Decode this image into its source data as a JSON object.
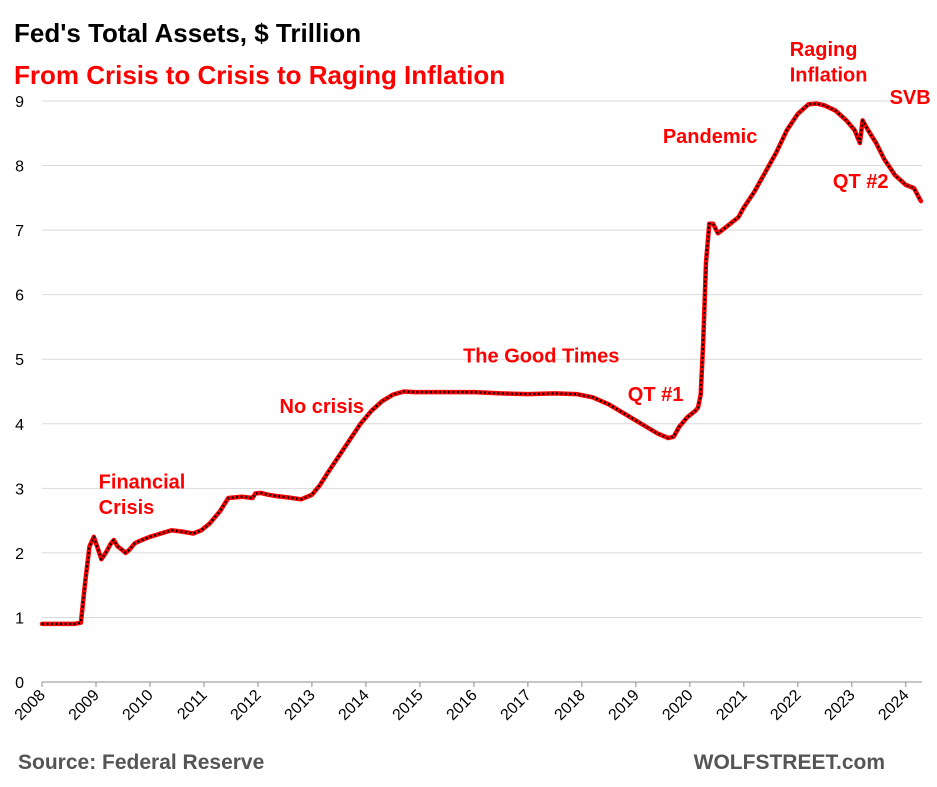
{
  "title": "Fed's Total Assets, $ Trillion",
  "subtitle": "From Crisis to Crisis to Raging Inflation",
  "source": "Source: Federal Reserve",
  "brand": "WOLFSTREET.com",
  "colors": {
    "accent": "#ff0000",
    "line_outer": "#ff0000",
    "line_inner": "#000000",
    "grid": "#d9d9d9",
    "footer_text": "#555555"
  },
  "chart_data": {
    "type": "line",
    "title": "Fed's Total Assets, $ Trillion",
    "subtitle": "From Crisis to Crisis to Raging Inflation",
    "xlabel": "",
    "ylabel": "",
    "xlim": [
      2008.0,
      2024.3
    ],
    "ylim": [
      0,
      9
    ],
    "grid": true,
    "x_ticks": [
      "2008",
      "2009",
      "2010",
      "2011",
      "2012",
      "2013",
      "2014",
      "2015",
      "2016",
      "2017",
      "2018",
      "2019",
      "2020",
      "2021",
      "2022",
      "2023",
      "2024"
    ],
    "y_ticks": [
      "0",
      "1",
      "2",
      "3",
      "4",
      "5",
      "6",
      "7",
      "8",
      "9"
    ],
    "series": [
      {
        "x": [
          2008.0,
          2008.3,
          2008.6,
          2008.72,
          2008.8,
          2008.88,
          2008.96,
          2009.02,
          2009.1,
          2009.18,
          2009.28,
          2009.33,
          2009.4,
          2009.48,
          2009.55,
          2009.62,
          2009.72,
          2009.85,
          2010.0,
          2010.2,
          2010.4,
          2010.6,
          2010.8,
          2010.95,
          2011.1,
          2011.3,
          2011.45,
          2011.7,
          2011.9,
          2011.95,
          2012.05,
          2012.2,
          2012.35,
          2012.55,
          2012.8,
          2013.0,
          2013.15,
          2013.3,
          2013.5,
          2013.7,
          2013.9,
          2014.1,
          2014.3,
          2014.5,
          2014.7,
          2014.9,
          2015.1,
          2015.5,
          2016.0,
          2016.5,
          2017.0,
          2017.5,
          2017.9,
          2018.2,
          2018.5,
          2018.8,
          2019.0,
          2019.2,
          2019.4,
          2019.6,
          2019.7,
          2019.8,
          2019.95,
          2020.1,
          2020.15,
          2020.2,
          2020.25,
          2020.3,
          2020.36,
          2020.43,
          2020.52,
          2020.6,
          2020.75,
          2020.9,
          2021.0,
          2021.2,
          2021.4,
          2021.6,
          2021.8,
          2022.0,
          2022.2,
          2022.35,
          2022.5,
          2022.7,
          2022.9,
          2023.05,
          2023.15,
          2023.2,
          2023.3,
          2023.45,
          2023.6,
          2023.8,
          2024.0,
          2024.15,
          2024.28
        ],
        "values": [
          0.9,
          0.9,
          0.9,
          0.92,
          1.55,
          2.1,
          2.25,
          2.1,
          1.9,
          2.0,
          2.15,
          2.2,
          2.1,
          2.05,
          2.0,
          2.05,
          2.15,
          2.2,
          2.25,
          2.3,
          2.35,
          2.33,
          2.3,
          2.35,
          2.45,
          2.65,
          2.85,
          2.87,
          2.85,
          2.92,
          2.93,
          2.9,
          2.88,
          2.86,
          2.83,
          2.9,
          3.05,
          3.25,
          3.5,
          3.75,
          4.0,
          4.2,
          4.35,
          4.45,
          4.5,
          4.49,
          4.49,
          4.49,
          4.49,
          4.47,
          4.46,
          4.47,
          4.46,
          4.41,
          4.3,
          4.15,
          4.05,
          3.95,
          3.85,
          3.78,
          3.8,
          3.95,
          4.1,
          4.2,
          4.25,
          4.45,
          5.3,
          6.5,
          7.1,
          7.1,
          6.95,
          7.0,
          7.1,
          7.2,
          7.35,
          7.6,
          7.9,
          8.2,
          8.55,
          8.8,
          8.95,
          8.96,
          8.93,
          8.85,
          8.7,
          8.55,
          8.35,
          8.7,
          8.55,
          8.35,
          8.1,
          7.85,
          7.7,
          7.65,
          7.45
        ]
      }
    ],
    "annotations": [
      {
        "text": "Financial",
        "x": 2009.05,
        "y": 3.0
      },
      {
        "text": "Crisis",
        "x": 2009.05,
        "y": 2.6
      },
      {
        "text": "No crisis",
        "x": 2012.4,
        "y": 4.17
      },
      {
        "text": "The Good Times",
        "x": 2015.8,
        "y": 4.95
      },
      {
        "text": "QT #1",
        "x": 2018.85,
        "y": 4.35
      },
      {
        "text": "Pandemic",
        "x": 2019.5,
        "y": 8.35
      },
      {
        "text": "Raging",
        "x": 2021.85,
        "y": 9.7
      },
      {
        "text": "Inflation",
        "x": 2021.85,
        "y": 9.3
      },
      {
        "text": "SVB",
        "x": 2023.7,
        "y": 8.95
      },
      {
        "text": "QT #2",
        "x": 2022.65,
        "y": 7.65
      }
    ]
  }
}
